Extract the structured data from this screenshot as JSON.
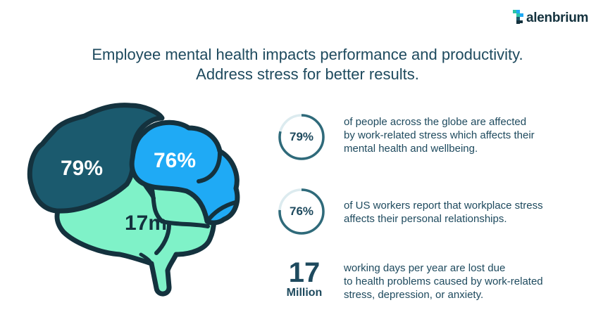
{
  "logo": {
    "text": "alenbrium",
    "icon": "t-grid-logo-icon"
  },
  "headline": {
    "line1": "Employee mental health impacts performance and productivity.",
    "line2": "Address stress for better results."
  },
  "brain": {
    "label_a": "79%",
    "label_b": "76%",
    "label_c": "17m",
    "colors": {
      "dark": "#1b5a6e",
      "blue": "#1faaf5",
      "mint": "#7ff2c8",
      "outline": "#14323e"
    }
  },
  "stats": [
    {
      "value": "79%",
      "fill_fraction": 0.79,
      "lines": [
        "of people across the globe are affected",
        "by work-related stress which affects their",
        "mental health and wellbeing."
      ]
    },
    {
      "value": "76%",
      "fill_fraction": 0.76,
      "lines": [
        "of US workers report that workplace stress",
        "affects their personal relationships."
      ]
    },
    {
      "value": "17",
      "unit": "Million",
      "lines": [
        "working days per year are lost due",
        "to health problems caused by work-related",
        "stress, depression, or anxiety."
      ]
    }
  ],
  "colors": {
    "ring_track": "#dcebef",
    "ring_fill": "#2f6a7a",
    "text": "#1e4a5e"
  }
}
